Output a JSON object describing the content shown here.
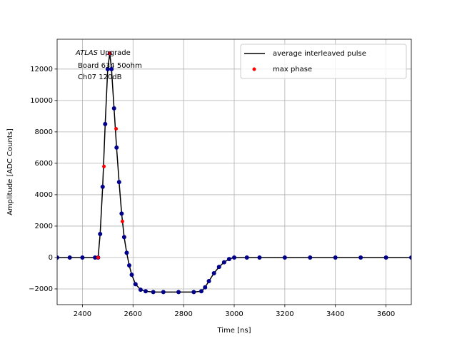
{
  "chart_data": {
    "type": "line",
    "annotation": {
      "italic": "ATLAS",
      "rest": "Upgrade",
      "lines": [
        "Board 634 50ohm",
        "Ch07 120dB"
      ]
    },
    "xlabel": "Time [ns]",
    "ylabel": "Amplitude [ADC Counts]",
    "xlim": [
      2300,
      3700
    ],
    "xticks": [
      2400,
      2600,
      2800,
      3000,
      3200,
      3400,
      3600
    ],
    "ylim": [
      -3000,
      13900
    ],
    "yticks": [
      {
        "value": -2000,
        "label": "−2000"
      },
      0,
      2000,
      4000,
      6000,
      8000,
      10000,
      12000
    ],
    "grid": true,
    "legend": "upper right",
    "series": [
      {
        "name": "average interleaved pulse",
        "color": "#000000",
        "marker_color": "#00008b",
        "style": "line",
        "x": [
          2300,
          2350,
          2400,
          2450,
          2462,
          2470,
          2480,
          2490,
          2500,
          2508,
          2515,
          2525,
          2535,
          2545,
          2555,
          2565,
          2575,
          2585,
          2595,
          2610,
          2630,
          2650,
          2680,
          2720,
          2780,
          2840,
          2870,
          2885,
          2900,
          2920,
          2940,
          2960,
          2980,
          3000,
          3050,
          3100,
          3200,
          3300,
          3400,
          3500,
          3600,
          3700
        ],
        "values": [
          0,
          0,
          0,
          0,
          0,
          1500,
          4500,
          8500,
          12000,
          13000,
          12000,
          9500,
          7000,
          4800,
          2800,
          1300,
          300,
          -500,
          -1100,
          -1700,
          -2050,
          -2150,
          -2200,
          -2200,
          -2200,
          -2200,
          -2150,
          -1900,
          -1500,
          -1000,
          -600,
          -300,
          -100,
          0,
          0,
          0,
          0,
          0,
          0,
          0,
          0,
          0
        ]
      },
      {
        "name": "max phase",
        "color": "#ff0000",
        "style": "markers",
        "x": [
          2462,
          2485,
          2508,
          2533,
          2558
        ],
        "values": [
          0,
          5800,
          13000,
          8200,
          2300
        ]
      }
    ]
  }
}
